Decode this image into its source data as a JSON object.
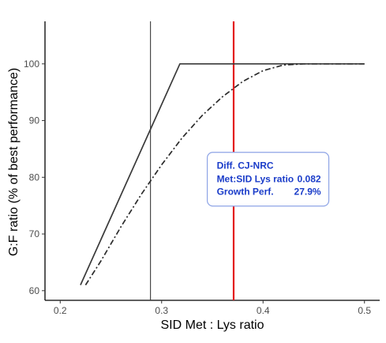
{
  "chart_data": {
    "type": "line",
    "title": "",
    "xlabel": "SID Met : Lys ratio",
    "ylabel": "G:F ratio (% of best performance)",
    "xlim": [
      0.185,
      0.515
    ],
    "ylim": [
      58.3,
      107.5
    ],
    "x_ticks": [
      0.2,
      0.3,
      0.4,
      0.5
    ],
    "x_tick_labels": [
      "0.2",
      "0.3",
      "0.4",
      "0.5"
    ],
    "y_ticks": [
      60,
      70,
      80,
      90,
      100
    ],
    "y_tick_labels": [
      "60",
      "70",
      "80",
      "90",
      "100"
    ],
    "grid": false,
    "legend": "none",
    "series": [
      {
        "style": "solid",
        "color": "#3a3a3a",
        "points": [
          [
            0.22,
            61.0
          ],
          [
            0.318,
            100.0
          ],
          [
            0.5,
            100.0
          ]
        ]
      },
      {
        "style": "dashdot",
        "color": "#2b2b2b",
        "points": [
          [
            0.225,
            61.0
          ],
          [
            0.24,
            65.2
          ],
          [
            0.26,
            71.3
          ],
          [
            0.28,
            77.0
          ],
          [
            0.3,
            82.2
          ],
          [
            0.32,
            86.9
          ],
          [
            0.34,
            90.9
          ],
          [
            0.36,
            94.2
          ],
          [
            0.38,
            96.9
          ],
          [
            0.4,
            98.8
          ],
          [
            0.42,
            99.8
          ],
          [
            0.44,
            100.0
          ],
          [
            0.5,
            100.0
          ]
        ]
      }
    ],
    "vlines": [
      {
        "x": 0.289,
        "color": "#3a3a3a",
        "width": "thin"
      },
      {
        "x": 0.371,
        "color": "#e31a1c",
        "width": "thick"
      }
    ],
    "annotation": {
      "anchor_x": 0.345,
      "anchor_y": 84.4,
      "border_color": "#8ea4e6",
      "text_color": "#1a3cc9",
      "title": "Diff. CJ-NRC",
      "line1_label": "Met:SID Lys ratio",
      "line1_value": "0.082",
      "line2_label": "Growth Perf.",
      "line2_value": "27.9%"
    }
  }
}
